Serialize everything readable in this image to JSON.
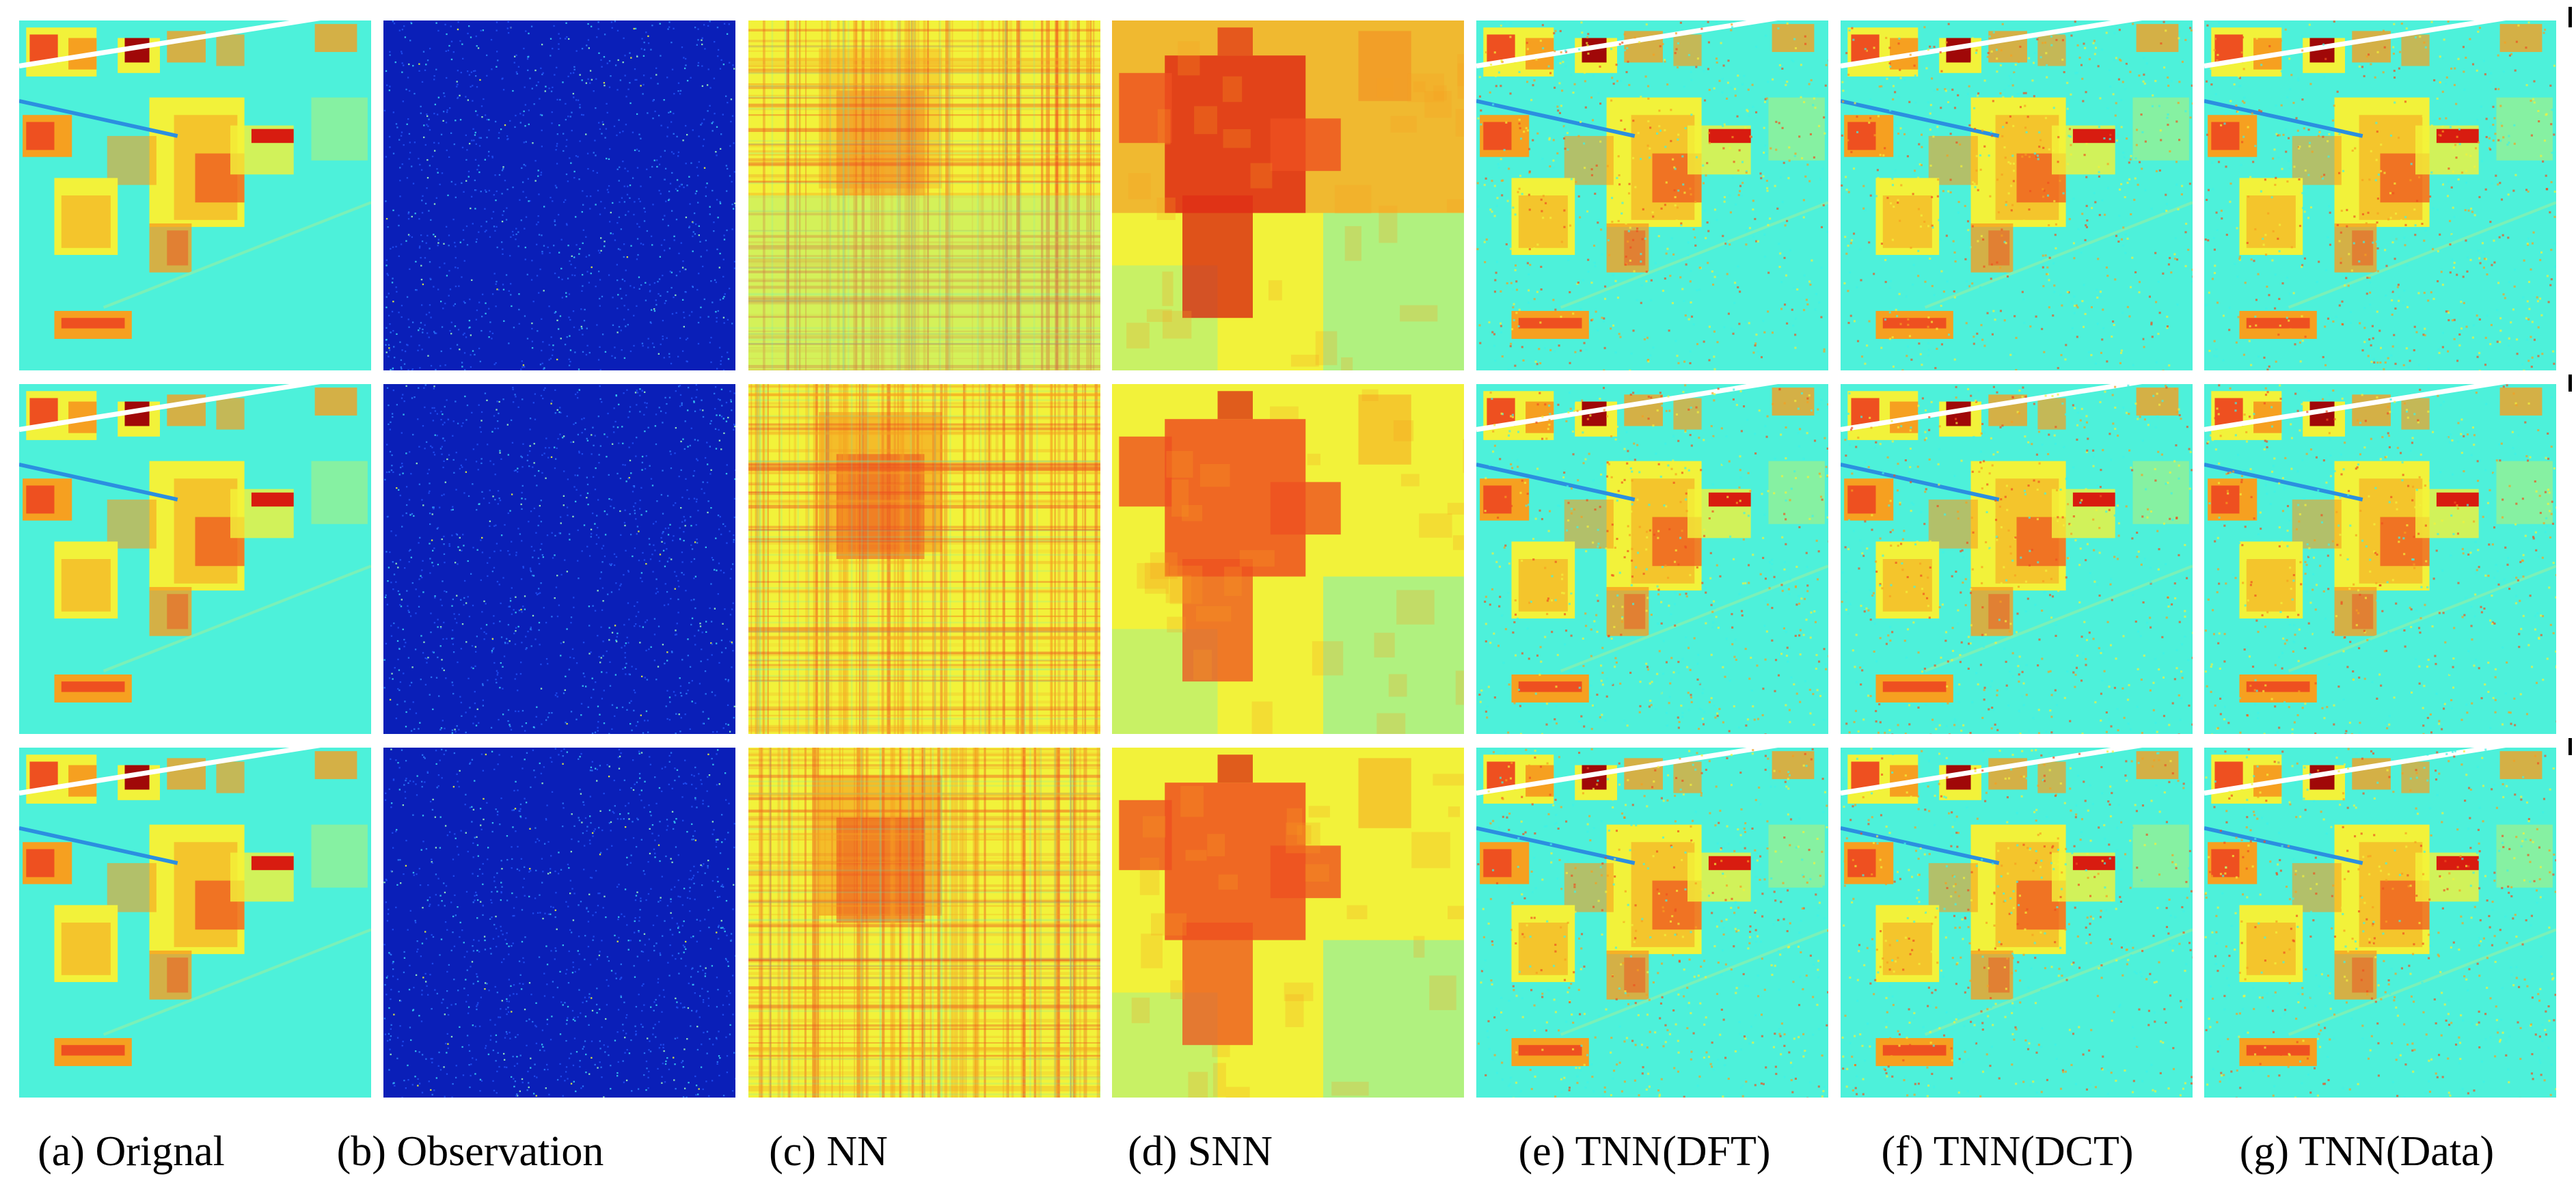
{
  "figure": {
    "captions": [
      "(a) Orignal",
      "(b) Observation",
      "(c) NN",
      "(d) SNN",
      "(e) TNN(DFT)",
      "(f) TNN(DCT)",
      "(g) TNN(Data)"
    ],
    "rows": 3,
    "panels": [
      {
        "key": "a",
        "method": "Orignal",
        "style": "original"
      },
      {
        "key": "b",
        "method": "Observation",
        "style": "observation"
      },
      {
        "key": "c",
        "method": "NN",
        "style": "nn"
      },
      {
        "key": "d",
        "method": "SNN",
        "style": "snn"
      },
      {
        "key": "e",
        "method": "TNN(DFT)",
        "style": "tnn"
      },
      {
        "key": "f",
        "method": "TNN(DCT)",
        "style": "tnn"
      },
      {
        "key": "g",
        "method": "TNN(Data)",
        "style": "tnn"
      }
    ],
    "colors": {
      "deep_blue": "#0a1fb8",
      "cyan": "#3ef2e6",
      "green_cyan": "#7af0b8",
      "yellow": "#f2f23a",
      "orange": "#f6a020",
      "red_orange": "#ee5020",
      "red": "#d81c10",
      "dark_red": "#a00808"
    }
  }
}
